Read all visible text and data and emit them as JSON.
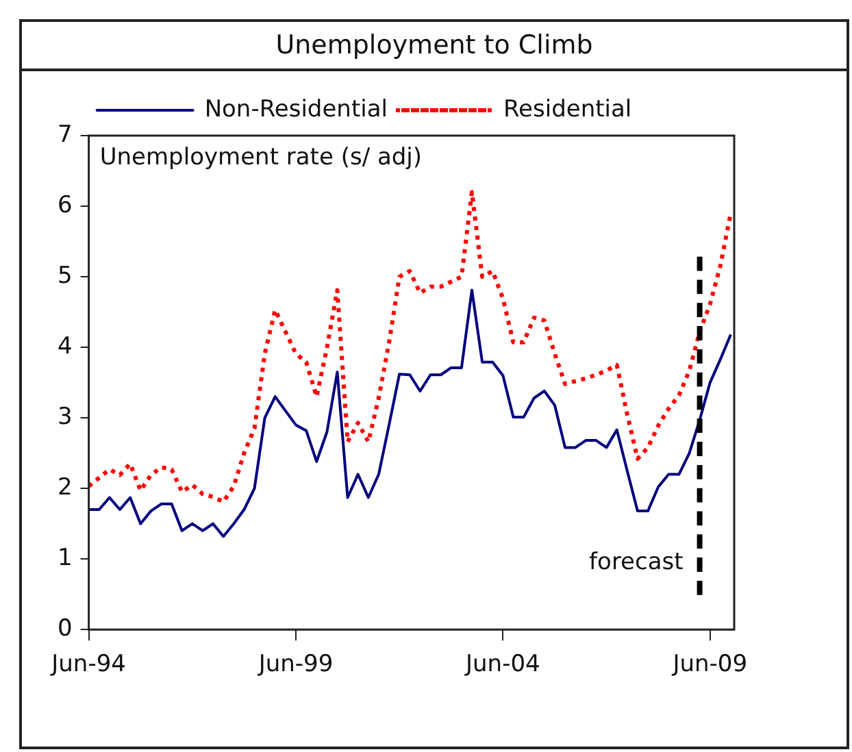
{
  "chart_data": {
    "type": "line",
    "title": "Unemployment to Climb",
    "annotations": [
      "Unemployment rate (s/ adj)"
    ],
    "x": [
      "1994-06",
      "1994-09",
      "1994-12",
      "1995-03",
      "1995-06",
      "1995-09",
      "1995-12",
      "1996-03",
      "1996-06",
      "1996-09",
      "1996-12",
      "1997-03",
      "1997-06",
      "1997-09",
      "1997-12",
      "1998-03",
      "1998-06",
      "1998-09",
      "1998-12",
      "1999-03",
      "1999-06",
      "1999-09",
      "1999-12",
      "2000-03",
      "2000-06",
      "2000-09",
      "2000-12",
      "2001-03",
      "2001-06",
      "2001-09",
      "2001-12",
      "2002-03",
      "2002-06",
      "2002-09",
      "2002-12",
      "2003-03",
      "2003-06",
      "2003-09",
      "2003-12",
      "2004-03",
      "2004-06",
      "2004-09",
      "2004-12",
      "2005-03",
      "2005-06",
      "2005-09",
      "2005-12",
      "2006-03",
      "2006-06",
      "2006-09",
      "2006-12",
      "2007-03",
      "2007-06",
      "2007-09",
      "2007-12",
      "2008-03",
      "2008-06",
      "2008-09",
      "2008-12",
      "2009-03",
      "2009-06",
      "2009-09",
      "2009-12"
    ],
    "series": [
      {
        "name": "Non-Residential",
        "color": "#000080",
        "line_style": "solid",
        "values": [
          1.7,
          1.7,
          1.87,
          1.7,
          1.87,
          1.5,
          1.68,
          1.78,
          1.78,
          1.4,
          1.5,
          1.4,
          1.5,
          1.32,
          1.5,
          1.7,
          2.0,
          3.0,
          3.3,
          3.1,
          2.9,
          2.82,
          2.38,
          2.8,
          3.65,
          1.87,
          2.2,
          1.87,
          2.2,
          2.9,
          3.62,
          3.61,
          3.38,
          3.61,
          3.61,
          3.71,
          3.71,
          4.81,
          3.79,
          3.79,
          3.6,
          3.01,
          3.01,
          3.28,
          3.38,
          3.18,
          2.58,
          2.58,
          2.68,
          2.68,
          2.58,
          2.83,
          2.25,
          1.68,
          1.68,
          2.02,
          2.2,
          2.2,
          2.5,
          2.97,
          3.5,
          3.83,
          4.18
        ]
      },
      {
        "name": "Residential",
        "color": "#ff0000",
        "line_style": "dotted",
        "values": [
          2.03,
          2.15,
          2.27,
          2.19,
          2.35,
          1.97,
          2.19,
          2.3,
          2.27,
          1.95,
          2.05,
          1.92,
          1.88,
          1.81,
          2.03,
          2.5,
          2.85,
          3.91,
          4.53,
          4.22,
          3.91,
          3.79,
          3.3,
          3.99,
          4.81,
          2.66,
          2.93,
          2.66,
          3.28,
          4.07,
          5.0,
          5.08,
          4.77,
          4.86,
          4.86,
          4.93,
          5.0,
          6.2,
          5.0,
          5.08,
          4.69,
          4.07,
          4.07,
          4.42,
          4.38,
          3.91,
          3.48,
          3.52,
          3.56,
          3.61,
          3.67,
          3.75,
          3.05,
          2.42,
          2.58,
          2.89,
          3.13,
          3.32,
          3.67,
          4.22,
          4.61,
          5.16,
          5.9
        ]
      }
    ],
    "xlim": [
      "1994-06",
      "2010-01"
    ],
    "xticks": [
      {
        "value": "1994-06",
        "label": "Jun-94"
      },
      {
        "value": "1999-06",
        "label": "Jun-99"
      },
      {
        "value": "2004-06",
        "label": "Jun-04"
      },
      {
        "value": "2009-06",
        "label": "Jun-09"
      }
    ],
    "ylim": [
      0,
      7
    ],
    "yticks": [
      0,
      1,
      2,
      3,
      4,
      5,
      6,
      7
    ],
    "ref_lines": [
      {
        "axis": "x",
        "value": "2009-03",
        "label": "forecast",
        "color": "#000000",
        "line_style": "dashed"
      }
    ],
    "grid": false,
    "legend": "top left",
    "marker": "none"
  }
}
